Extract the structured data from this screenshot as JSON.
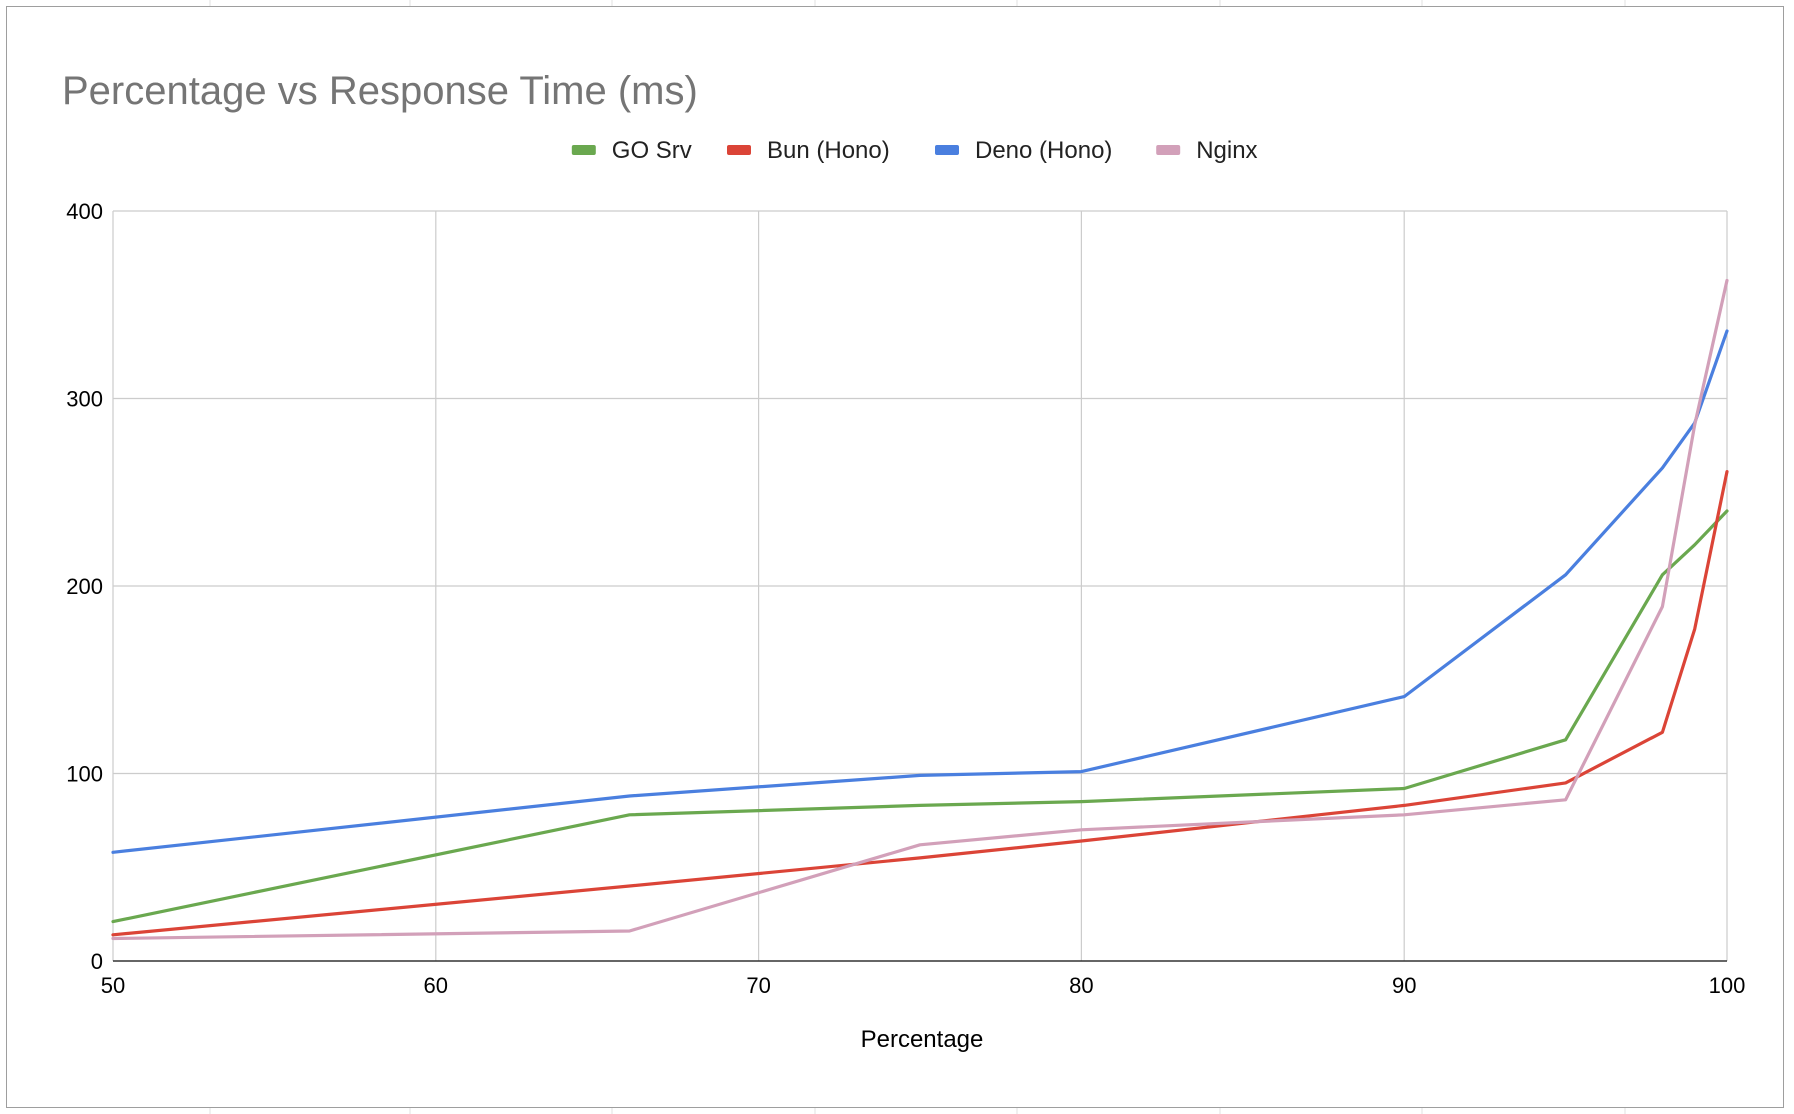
{
  "chart_data": {
    "type": "line",
    "title": "Percentage vs Response Time (ms)",
    "xlabel": "Percentage",
    "ylabel": "",
    "xlim": [
      50,
      100
    ],
    "ylim": [
      0,
      400
    ],
    "xticks": [
      50,
      60,
      70,
      80,
      90,
      100
    ],
    "yticks": [
      0,
      100,
      200,
      300,
      400
    ],
    "grid": true,
    "legend_position": "top",
    "series": [
      {
        "name": "GO Srv",
        "color": "#6aa84f",
        "points": [
          [
            50,
            21
          ],
          [
            66,
            78
          ],
          [
            75,
            83
          ],
          [
            80,
            85
          ],
          [
            90,
            92
          ],
          [
            95,
            118
          ],
          [
            98,
            206
          ],
          [
            99,
            222
          ],
          [
            100,
            240
          ]
        ]
      },
      {
        "name": "Bun (Hono)",
        "color": "#db4437",
        "points": [
          [
            50,
            14
          ],
          [
            66,
            40
          ],
          [
            75,
            55
          ],
          [
            80,
            64
          ],
          [
            90,
            83
          ],
          [
            95,
            95
          ],
          [
            98,
            122
          ],
          [
            99,
            177
          ],
          [
            100,
            261
          ]
        ]
      },
      {
        "name": "Deno (Hono)",
        "color": "#4a7fdf",
        "points": [
          [
            50,
            58
          ],
          [
            66,
            88
          ],
          [
            75,
            99
          ],
          [
            80,
            101
          ],
          [
            90,
            141
          ],
          [
            95,
            206
          ],
          [
            98,
            263
          ],
          [
            99,
            287
          ],
          [
            100,
            336
          ]
        ]
      },
      {
        "name": "Nginx",
        "color": "#d2a0b9",
        "points": [
          [
            50,
            12
          ],
          [
            66,
            16
          ],
          [
            75,
            62
          ],
          [
            80,
            70
          ],
          [
            90,
            78
          ],
          [
            95,
            86
          ],
          [
            98,
            189
          ],
          [
            99,
            286
          ],
          [
            100,
            363
          ]
        ]
      }
    ]
  }
}
